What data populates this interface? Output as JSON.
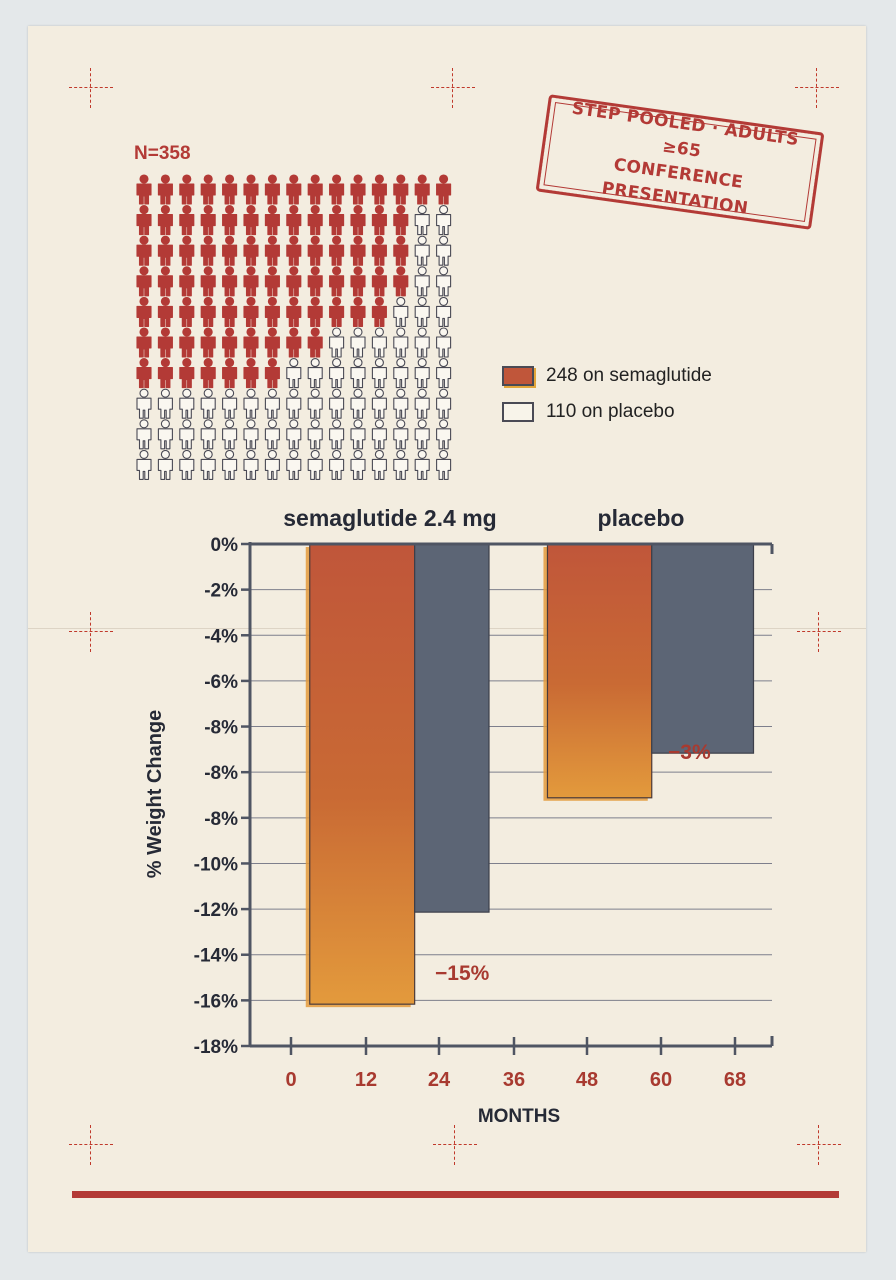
{
  "stamp": {
    "line1": "STEP POOLED · ADULTS ≥65",
    "line2": "CONFERENCE PRESENTATION"
  },
  "pictogram": {
    "total_label": "N=358",
    "filled_count": 82,
    "total_count": 150
  },
  "legend": {
    "semaglutide": "248 on semaglutide",
    "placebo": "110 on placebo"
  },
  "colors": {
    "accent_red": "#b33a36",
    "bar_orange": "#c0563a",
    "bar_orange_light": "#e39a3c",
    "bar_slate": "#5c6575",
    "grid": "#7d7f8c",
    "axis": "#4f5563"
  },
  "chart_data": {
    "type": "bar",
    "groups": [
      "semaglutide 2.4 mg",
      "placebo"
    ],
    "ylabel": "% Weight Change",
    "xlabel": "MONTHS",
    "y_tick_labels": [
      "0%",
      "-2%",
      "-4%",
      "-6%",
      "-8%",
      "-8%",
      "-8%",
      "-10%",
      "-12%",
      "-14%",
      "-16%",
      "-18%"
    ],
    "x_tick_labels": [
      "0",
      "12",
      "24",
      "36",
      "48",
      "60",
      "68"
    ],
    "ylim": [
      -18,
      0
    ],
    "grid": true,
    "bars": [
      {
        "group": "semaglutide 2.4 mg",
        "style": "orange",
        "x_start": 3,
        "x_end": 20,
        "value": -16.5
      },
      {
        "group": "semaglutide 2.4 mg",
        "style": "slate",
        "x_start": 20,
        "x_end": 32,
        "value": -13.2
      },
      {
        "group": "placebo",
        "style": "orange",
        "x_start": 41.5,
        "x_end": 58.5,
        "value": -9.1
      },
      {
        "group": "placebo",
        "style": "slate",
        "x_start": 58.5,
        "x_end": 70,
        "value": -7.5
      }
    ],
    "annotations": [
      "−15%",
      "−3%"
    ]
  }
}
